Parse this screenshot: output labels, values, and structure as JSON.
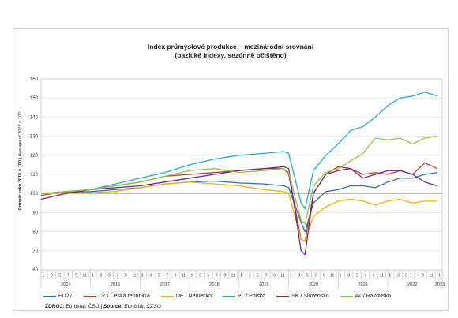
{
  "title": {
    "line1": "Index průmyslové produkce – mezinárodní srovnání",
    "line2": "(bazické indexy, sezónně očištěno)"
  },
  "source": {
    "label": "ZDROJ:",
    "text_plain": "Eurostat, ČSÚ | ",
    "label_en": "Source:",
    "text_en": "Eurostat, CZSO"
  },
  "chart_data": {
    "type": "line",
    "title": "Index průmyslové produkce – mezinárodní srovnání (bazické indexy, sezónně očištěno)",
    "ylabel_bold": "Průměr roku 2015 = 100",
    "ylabel_italic": "Average of 2015 = 100",
    "ylim": [
      60,
      160
    ],
    "yticks": [
      60,
      70,
      80,
      90,
      100,
      110,
      120,
      130,
      140,
      150,
      160
    ],
    "years": [
      "2015",
      "2016",
      "2017",
      "2018",
      "2019",
      "2020",
      "2021",
      "2022",
      "2023"
    ],
    "month_ticks": [
      "1",
      "3",
      "5",
      "7",
      "9",
      "11"
    ],
    "x_start": "2015-01",
    "x_end": "2023-01",
    "reference_line": 100,
    "grid": true,
    "legend_position": "bottom",
    "series": [
      {
        "name": "EU27",
        "color": "#2e6fb0",
        "values": [
          [
            2015.0,
            100
          ],
          [
            2015.5,
            100.5
          ],
          [
            2016.0,
            101
          ],
          [
            2016.5,
            102
          ],
          [
            2017.0,
            103
          ],
          [
            2017.5,
            105
          ],
          [
            2018.0,
            106
          ],
          [
            2018.5,
            106.5
          ],
          [
            2019.0,
            105.5
          ],
          [
            2019.5,
            105
          ],
          [
            2019.9,
            104
          ],
          [
            2020.0,
            103
          ],
          [
            2020.25,
            85
          ],
          [
            2020.33,
            80
          ],
          [
            2020.5,
            95
          ],
          [
            2020.75,
            101
          ],
          [
            2021.0,
            102
          ],
          [
            2021.25,
            104
          ],
          [
            2021.5,
            104
          ],
          [
            2021.75,
            103
          ],
          [
            2022.0,
            106
          ],
          [
            2022.25,
            108
          ],
          [
            2022.5,
            108
          ],
          [
            2022.75,
            110
          ],
          [
            2023.0,
            111
          ]
        ]
      },
      {
        "name": "CZ / Česká republika",
        "color": "#c0392b",
        "values": [
          [
            2015.0,
            99
          ],
          [
            2015.5,
            101
          ],
          [
            2016.0,
            102
          ],
          [
            2016.5,
            104
          ],
          [
            2017.0,
            106
          ],
          [
            2017.5,
            109
          ],
          [
            2018.0,
            110
          ],
          [
            2018.5,
            111
          ],
          [
            2019.0,
            112
          ],
          [
            2019.5,
            113
          ],
          [
            2019.9,
            113
          ],
          [
            2020.0,
            110
          ],
          [
            2020.25,
            76
          ],
          [
            2020.33,
            75
          ],
          [
            2020.5,
            100
          ],
          [
            2020.75,
            110
          ],
          [
            2021.0,
            114
          ],
          [
            2021.25,
            113
          ],
          [
            2021.5,
            110
          ],
          [
            2021.75,
            111
          ],
          [
            2022.0,
            110
          ],
          [
            2022.25,
            112
          ],
          [
            2022.5,
            110
          ],
          [
            2022.75,
            116
          ],
          [
            2023.0,
            113
          ]
        ]
      },
      {
        "name": "DE / Německo",
        "color": "#f0b400",
        "values": [
          [
            2015.0,
            100
          ],
          [
            2015.5,
            100
          ],
          [
            2016.0,
            100.5
          ],
          [
            2016.5,
            101
          ],
          [
            2017.0,
            103
          ],
          [
            2017.5,
            105
          ],
          [
            2018.0,
            106
          ],
          [
            2018.5,
            105
          ],
          [
            2019.0,
            104
          ],
          [
            2019.5,
            102
          ],
          [
            2019.9,
            101
          ],
          [
            2020.0,
            100
          ],
          [
            2020.25,
            76
          ],
          [
            2020.33,
            75
          ],
          [
            2020.5,
            88
          ],
          [
            2020.75,
            93
          ],
          [
            2021.0,
            96
          ],
          [
            2021.25,
            97
          ],
          [
            2021.5,
            96
          ],
          [
            2021.75,
            94
          ],
          [
            2022.0,
            96
          ],
          [
            2022.25,
            97
          ],
          [
            2022.5,
            95
          ],
          [
            2022.75,
            96
          ],
          [
            2023.0,
            96
          ]
        ]
      },
      {
        "name": "PL / Polsko",
        "color": "#29a8d8",
        "values": [
          [
            2015.0,
            100
          ],
          [
            2015.5,
            101
          ],
          [
            2016.0,
            102
          ],
          [
            2016.5,
            105
          ],
          [
            2017.0,
            108
          ],
          [
            2017.5,
            111
          ],
          [
            2018.0,
            115
          ],
          [
            2018.5,
            118
          ],
          [
            2019.0,
            120
          ],
          [
            2019.5,
            121
          ],
          [
            2019.9,
            122
          ],
          [
            2020.0,
            121
          ],
          [
            2020.25,
            95
          ],
          [
            2020.33,
            92
          ],
          [
            2020.5,
            112
          ],
          [
            2020.75,
            120
          ],
          [
            2021.0,
            126
          ],
          [
            2021.25,
            133
          ],
          [
            2021.5,
            135
          ],
          [
            2021.75,
            140
          ],
          [
            2022.0,
            146
          ],
          [
            2022.25,
            150
          ],
          [
            2022.5,
            151
          ],
          [
            2022.75,
            153
          ],
          [
            2023.0,
            151
          ]
        ]
      },
      {
        "name": "SK / Slovensko",
        "color": "#6a2c8c",
        "values": [
          [
            2015.0,
            97
          ],
          [
            2015.5,
            100
          ],
          [
            2016.0,
            102
          ],
          [
            2016.5,
            103
          ],
          [
            2017.0,
            104
          ],
          [
            2017.5,
            106
          ],
          [
            2018.0,
            108
          ],
          [
            2018.5,
            110
          ],
          [
            2019.0,
            112
          ],
          [
            2019.5,
            113
          ],
          [
            2019.9,
            114
          ],
          [
            2020.0,
            113
          ],
          [
            2020.25,
            70
          ],
          [
            2020.33,
            68
          ],
          [
            2020.5,
            100
          ],
          [
            2020.75,
            110
          ],
          [
            2021.0,
            112
          ],
          [
            2021.25,
            113
          ],
          [
            2021.5,
            108
          ],
          [
            2021.75,
            110
          ],
          [
            2022.0,
            112
          ],
          [
            2022.25,
            112
          ],
          [
            2022.5,
            110
          ],
          [
            2022.75,
            106
          ],
          [
            2023.0,
            104
          ]
        ]
      },
      {
        "name": "AT / Rakousko",
        "color": "#8dc63f",
        "values": [
          [
            2015.0,
            100
          ],
          [
            2015.5,
            101
          ],
          [
            2016.0,
            102
          ],
          [
            2016.5,
            104
          ],
          [
            2017.0,
            106
          ],
          [
            2017.5,
            109
          ],
          [
            2018.0,
            112
          ],
          [
            2018.5,
            113
          ],
          [
            2019.0,
            111
          ],
          [
            2019.5,
            112
          ],
          [
            2019.9,
            113
          ],
          [
            2020.0,
            111
          ],
          [
            2020.25,
            86
          ],
          [
            2020.33,
            84
          ],
          [
            2020.5,
            104
          ],
          [
            2020.75,
            111
          ],
          [
            2021.0,
            113
          ],
          [
            2021.25,
            117
          ],
          [
            2021.5,
            121
          ],
          [
            2021.75,
            129
          ],
          [
            2022.0,
            128
          ],
          [
            2022.25,
            129
          ],
          [
            2022.5,
            126
          ],
          [
            2022.75,
            129
          ],
          [
            2023.0,
            130
          ]
        ]
      }
    ]
  }
}
